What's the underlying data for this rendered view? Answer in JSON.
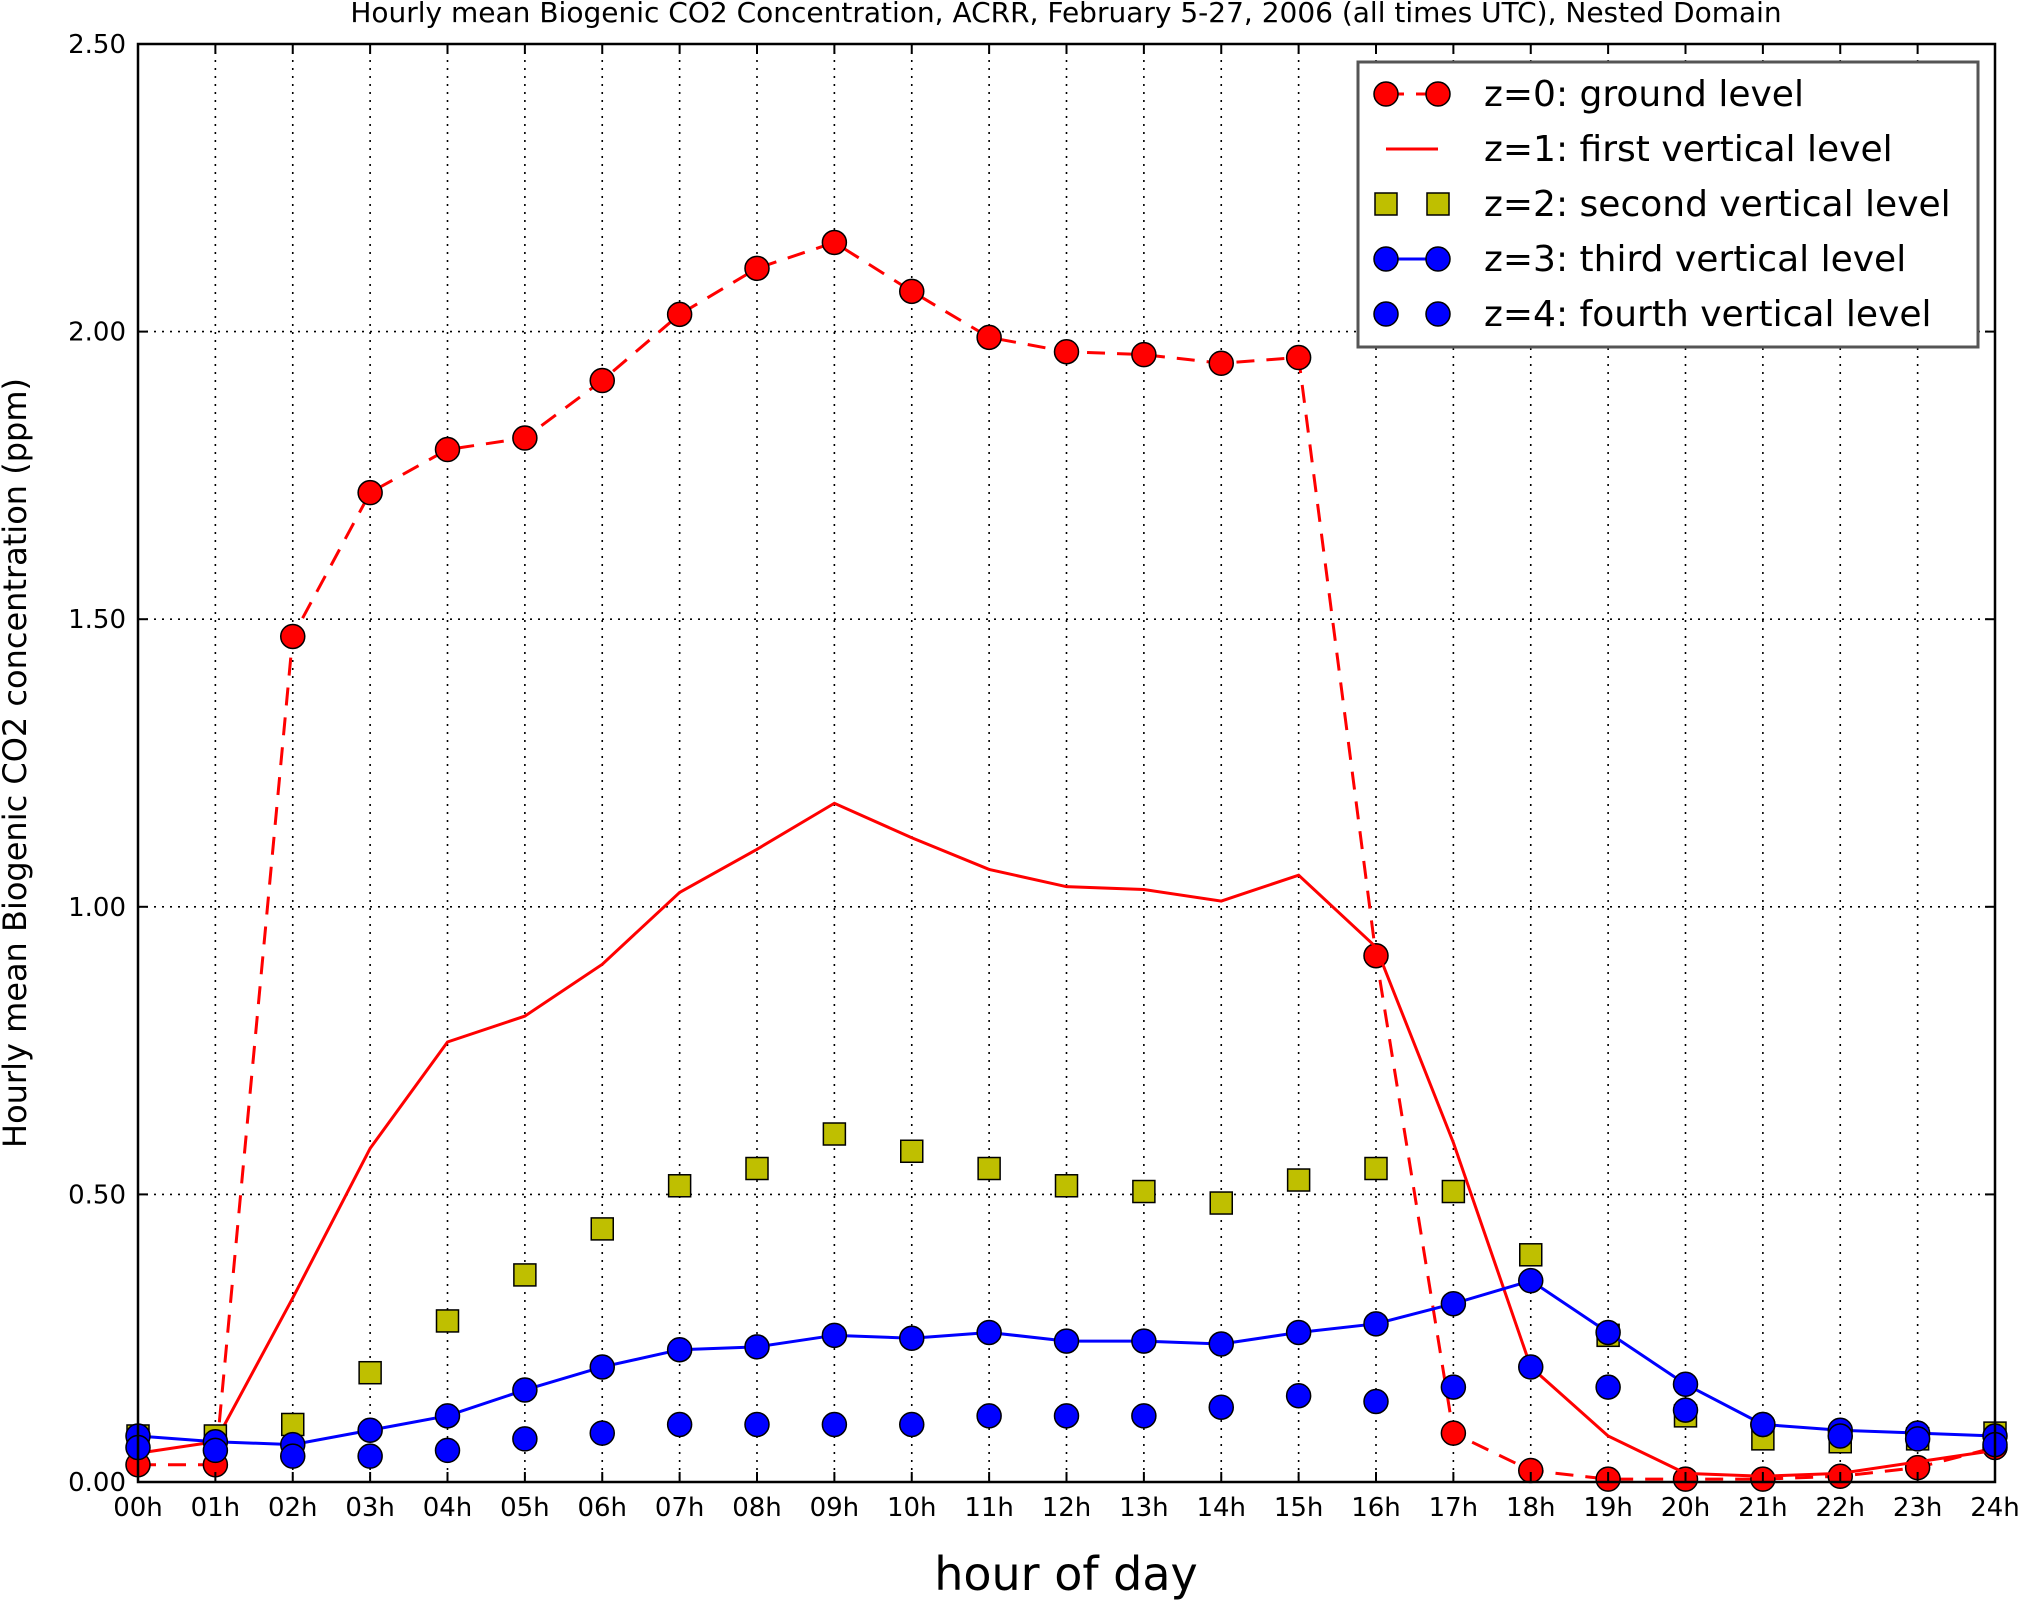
{
  "chart_data": {
    "type": "line",
    "title": "Hourly mean Biogenic CO2 Concentration, ACRR, February 5-27, 2006 (all times UTC), Nested Domain",
    "xlabel": "hour of day",
    "ylabel": "Hourly mean Biogenic CO2 concentration (ppm)",
    "x": [
      0,
      1,
      2,
      3,
      4,
      5,
      6,
      7,
      8,
      9,
      10,
      11,
      12,
      13,
      14,
      15,
      16,
      17,
      18,
      19,
      20,
      21,
      22,
      23,
      24
    ],
    "xlim": [
      0,
      24
    ],
    "ylim": [
      0,
      2.5
    ],
    "xtick_labels": [
      "00h",
      "01h",
      "02h",
      "03h",
      "04h",
      "05h",
      "06h",
      "07h",
      "08h",
      "09h",
      "10h",
      "11h",
      "12h",
      "13h",
      "14h",
      "15h",
      "16h",
      "17h",
      "18h",
      "19h",
      "20h",
      "21h",
      "22h",
      "23h",
      "24h"
    ],
    "ytick_values": [
      0,
      0.5,
      1.0,
      1.5,
      2.0,
      2.5
    ],
    "ytick_labels": [
      "0.00",
      "0.50",
      "1.00",
      "1.50",
      "2.00",
      "2.50"
    ],
    "grid": true,
    "legend_position": "top-right",
    "series": [
      {
        "name": "z=0: ground level",
        "color": "#ff0000",
        "line": "dashed",
        "marker": "circle",
        "values": [
          0.03,
          0.03,
          1.47,
          1.72,
          1.795,
          1.815,
          1.915,
          2.03,
          2.11,
          2.155,
          2.07,
          1.99,
          1.965,
          1.96,
          1.945,
          1.955,
          0.915,
          0.085,
          0.02,
          0.005,
          0.005,
          0.005,
          0.01,
          0.025,
          0.06
        ]
      },
      {
        "name": "z=1: first vertical level",
        "color": "#ff0000",
        "line": "solid",
        "marker": "none",
        "values": [
          0.05,
          0.07,
          0.32,
          0.58,
          0.765,
          0.81,
          0.9,
          1.025,
          1.1,
          1.18,
          1.12,
          1.065,
          1.035,
          1.03,
          1.01,
          1.055,
          0.93,
          0.59,
          0.2,
          0.08,
          0.015,
          0.01,
          0.015,
          0.035,
          0.055
        ]
      },
      {
        "name": "z=2: second vertical level",
        "color": "#bfbf00",
        "line": "none",
        "marker": "square",
        "values": [
          0.08,
          0.08,
          0.1,
          0.19,
          0.28,
          0.36,
          0.44,
          0.515,
          0.545,
          0.605,
          0.575,
          0.545,
          0.515,
          0.505,
          0.485,
          0.525,
          0.545,
          0.505,
          0.395,
          0.255,
          0.115,
          0.075,
          0.07,
          0.075,
          0.085
        ]
      },
      {
        "name": "z=3: third vertical level",
        "color": "#0000ff",
        "line": "solid",
        "marker": "circle",
        "values": [
          0.08,
          0.07,
          0.065,
          0.09,
          0.115,
          0.16,
          0.2,
          0.23,
          0.235,
          0.255,
          0.25,
          0.26,
          0.245,
          0.245,
          0.24,
          0.26,
          0.275,
          0.31,
          0.35,
          0.26,
          0.17,
          0.1,
          0.09,
          0.085,
          0.08
        ]
      },
      {
        "name": "z=4: fourth vertical level",
        "color": "#0000ff",
        "line": "none",
        "marker": "circle",
        "values": [
          0.06,
          0.055,
          0.045,
          0.045,
          0.055,
          0.075,
          0.085,
          0.1,
          0.1,
          0.1,
          0.1,
          0.115,
          0.115,
          0.115,
          0.13,
          0.15,
          0.14,
          0.165,
          0.2,
          0.165,
          0.125,
          0.1,
          0.08,
          0.075,
          0.065
        ]
      }
    ]
  }
}
